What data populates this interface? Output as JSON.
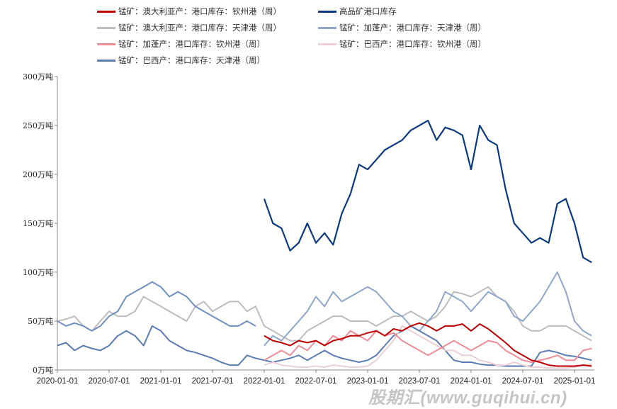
{
  "chart_data": {
    "type": "line",
    "title": "",
    "xlabel": "",
    "ylabel": "",
    "ylim": [
      0,
      300
    ],
    "y_ticks": [
      "0万吨",
      "50万吨",
      "100万吨",
      "150万吨",
      "200万吨",
      "250万吨",
      "300万吨"
    ],
    "y_tick_values": [
      0,
      50,
      100,
      150,
      200,
      250,
      300
    ],
    "x_ticks": [
      "2020-01-01",
      "2020-07-01",
      "2021-01-01",
      "2021-07-01",
      "2022-01-01",
      "2022-07-01",
      "2023-01-01",
      "2023-07-01",
      "2024-01-01",
      "2024-07-01",
      "2025-01-01"
    ],
    "x_unit": "monthly, index 0 = 2020-01",
    "legend_position": "top",
    "series": [
      {
        "name": "锰矿：澳大利亚产：港口库存：钦州港（周）",
        "color": "#c00000",
        "start": 24,
        "values": [
          35,
          30,
          28,
          25,
          30,
          28,
          30,
          25,
          30,
          32,
          35,
          35,
          38,
          40,
          35,
          42,
          40,
          45,
          48,
          45,
          40,
          45,
          45,
          47,
          40,
          47,
          42,
          35,
          28,
          20,
          15,
          10,
          8,
          5,
          4,
          4,
          4,
          5,
          4
        ]
      },
      {
        "name": "高品矿港口库存",
        "color": "#0b3a80",
        "start": 24,
        "values": [
          175,
          150,
          145,
          122,
          130,
          150,
          130,
          140,
          128,
          160,
          180,
          210,
          205,
          215,
          225,
          230,
          235,
          245,
          250,
          255,
          235,
          248,
          245,
          240,
          205,
          250,
          235,
          230,
          185,
          150,
          140,
          130,
          135,
          130,
          170,
          175,
          150,
          115,
          110
        ]
      },
      {
        "name": "锰矿：澳大利亚产：港口库存：天津港（周）",
        "color": "#bdbdbd",
        "start": 0,
        "values": [
          50,
          52,
          55,
          45,
          40,
          50,
          60,
          55,
          55,
          60,
          75,
          70,
          65,
          60,
          55,
          50,
          65,
          70,
          60,
          65,
          70,
          70,
          60,
          65,
          45,
          40,
          35,
          30,
          30,
          40,
          45,
          50,
          55,
          55,
          50,
          50,
          50,
          45,
          50,
          55,
          55,
          60,
          55,
          50,
          55,
          65,
          80,
          78,
          75,
          80,
          85,
          75,
          70,
          60,
          45,
          40,
          40,
          45,
          45,
          45,
          40,
          35,
          30
        ]
      },
      {
        "name": "锰矿：加蓬产：港口库存：天津港（周）",
        "color": "#8fa6cc",
        "start": 24,
        "values": [
          25,
          35,
          30,
          40,
          50,
          60,
          75,
          65,
          80,
          70,
          75,
          80,
          85,
          80,
          70,
          60,
          55,
          45,
          40,
          50,
          60,
          80,
          75,
          70,
          60,
          70,
          80,
          75,
          70,
          55,
          50,
          60,
          70,
          85,
          100,
          80,
          50,
          40,
          35
        ]
      },
      {
        "name": "锰矿：加蓬产：港口库存：钦州港（周）",
        "color": "#f08c96",
        "start": 24,
        "values": [
          10,
          15,
          20,
          15,
          25,
          20,
          30,
          25,
          35,
          30,
          40,
          35,
          30,
          40,
          35,
          38,
          30,
          25,
          20,
          15,
          20,
          25,
          30,
          25,
          20,
          25,
          30,
          28,
          20,
          15,
          10,
          8,
          10,
          12,
          15,
          10,
          10,
          20,
          22
        ]
      },
      {
        "name": "锰矿：巴西产：港口库存：钦州港（周）",
        "color": "#ebcfd2",
        "start": 24,
        "values": [
          5,
          8,
          5,
          4,
          3,
          3,
          4,
          3,
          5,
          4,
          3,
          3,
          4,
          10,
          20,
          30,
          45,
          40,
          35,
          30,
          25,
          20,
          20,
          15,
          15,
          10,
          8,
          5,
          5,
          8,
          5,
          3,
          3,
          2,
          2,
          2,
          3,
          5,
          6
        ]
      },
      {
        "name": "锰矿：巴西产：港口库存：天津港（周）",
        "color": "#5a7bb5",
        "start": 0,
        "values": [
          25,
          28,
          20,
          25,
          22,
          20,
          25,
          35,
          40,
          35,
          25,
          45,
          40,
          30,
          25,
          20,
          18,
          15,
          12,
          8,
          5,
          5,
          15,
          12,
          10,
          8,
          10,
          12,
          15,
          10,
          15,
          20,
          15,
          12,
          10,
          8,
          10,
          15,
          25,
          35,
          40,
          45,
          40,
          35,
          30,
          20,
          10,
          8,
          8,
          6,
          5,
          5,
          4,
          4,
          4,
          4,
          18,
          20,
          18,
          15,
          14,
          12,
          10
        ]
      },
      {
        "name": "锰矿：加蓬产：港口库存：天津港（周）_2020-2021",
        "color": "#6f8fc4",
        "start": 0,
        "legend": false,
        "values": [
          50,
          45,
          48,
          45,
          40,
          45,
          55,
          60,
          75,
          80,
          85,
          90,
          85,
          75,
          80,
          75,
          65,
          60,
          55,
          50,
          45,
          45,
          50,
          45
        ]
      }
    ]
  },
  "watermark": "股期汇(www.guqihui.cn)"
}
